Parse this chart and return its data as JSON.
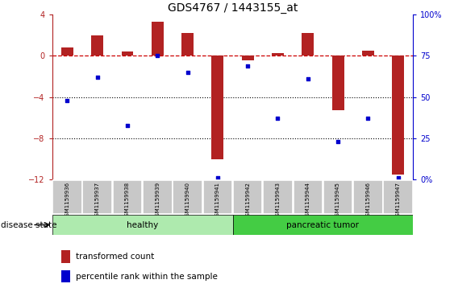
{
  "title": "GDS4767 / 1443155_at",
  "samples": [
    "GSM1159936",
    "GSM1159937",
    "GSM1159938",
    "GSM1159939",
    "GSM1159940",
    "GSM1159941",
    "GSM1159942",
    "GSM1159943",
    "GSM1159944",
    "GSM1159945",
    "GSM1159946",
    "GSM1159947"
  ],
  "red_values": [
    0.8,
    2.0,
    0.4,
    3.3,
    2.2,
    -10.0,
    -0.4,
    0.3,
    2.2,
    -5.3,
    0.5,
    -11.5
  ],
  "blue_values_pct": [
    48,
    62,
    33,
    75,
    65,
    1,
    69,
    37,
    61,
    23,
    37,
    1
  ],
  "ylim_left": [
    -12,
    4
  ],
  "ylim_right": [
    0,
    100
  ],
  "dotted_lines": [
    -4,
    -8
  ],
  "bar_color": "#B22222",
  "dot_color": "#0000CD",
  "hline_color": "#CC0000",
  "healthy_color": "#AEEAAE",
  "tumor_color": "#44CC44",
  "healthy_label": "healthy",
  "tumor_label": "pancreatic tumor",
  "n_healthy": 6,
  "n_tumor": 6,
  "legend_red": "transformed count",
  "legend_blue": "percentile rank within the sample",
  "disease_state_label": "disease state",
  "xlabel_area_color": "#C8C8C8",
  "right_yticklabels": [
    "0%",
    "25",
    "50",
    "75",
    "100%"
  ],
  "right_ytick_vals": [
    0,
    25,
    50,
    75,
    100
  ]
}
